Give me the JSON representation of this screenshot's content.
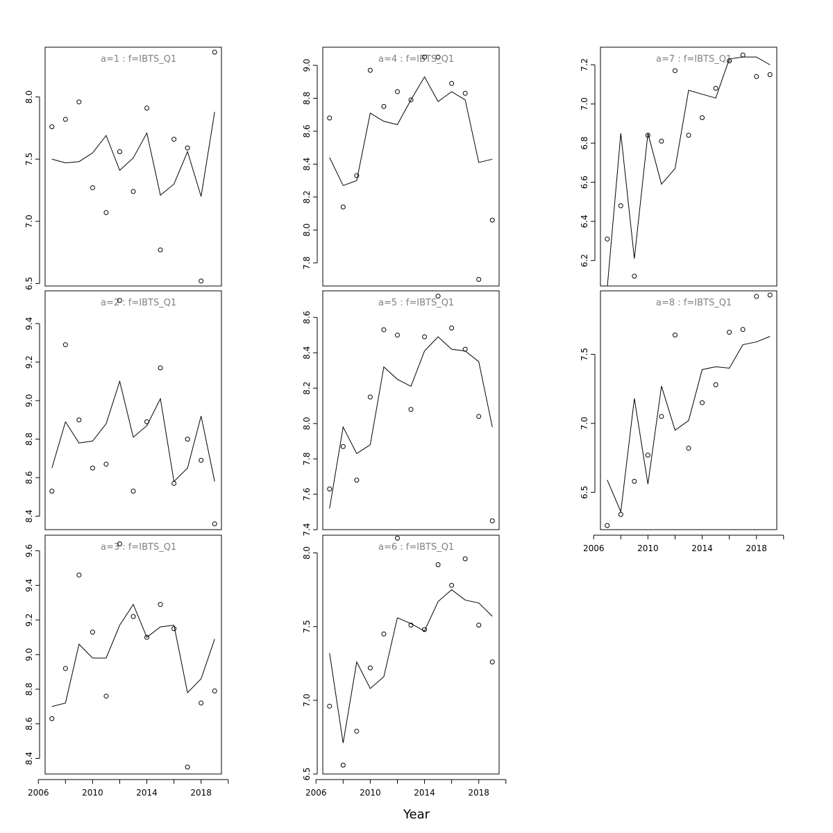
{
  "figure": {
    "xlabel": "Year"
  },
  "chart_data": [
    {
      "type": "line",
      "title": "a=1  :  f=IBTS_Q1",
      "x": [
        2007,
        2008,
        2009,
        2010,
        2011,
        2012,
        2013,
        2014,
        2015,
        2016,
        2017,
        2018,
        2019
      ],
      "series": [
        {
          "kind": "points",
          "values": [
            7.76,
            7.82,
            7.96,
            7.27,
            7.07,
            7.56,
            7.24,
            7.91,
            6.77,
            7.66,
            7.59,
            6.52,
            8.36
          ]
        },
        {
          "kind": "line",
          "values": [
            7.5,
            7.47,
            7.48,
            7.55,
            7.69,
            7.41,
            7.51,
            7.71,
            7.21,
            7.3,
            7.56,
            7.2,
            7.88
          ]
        }
      ],
      "ylim": [
        6.48,
        8.4
      ],
      "yticks": [
        6.5,
        7.0,
        7.5,
        8.0
      ],
      "ytick_labels": [
        "6.5",
        "7.0",
        "7.5",
        "8.0"
      ]
    },
    {
      "type": "line",
      "title": "a=2  :  f=IBTS_Q1",
      "x": [
        2007,
        2008,
        2009,
        2010,
        2011,
        2012,
        2013,
        2014,
        2015,
        2016,
        2017,
        2018,
        2019
      ],
      "series": [
        {
          "kind": "points",
          "values": [
            8.53,
            9.29,
            8.9,
            8.65,
            8.67,
            9.52,
            8.53,
            8.89,
            9.17,
            8.57,
            8.8,
            8.69,
            8.36
          ]
        },
        {
          "kind": "line",
          "values": [
            8.65,
            8.89,
            8.78,
            8.79,
            8.88,
            9.1,
            8.81,
            8.87,
            9.01,
            8.58,
            8.65,
            8.92,
            8.58
          ]
        }
      ],
      "ylim": [
        8.33,
        9.57
      ],
      "yticks": [
        8.4,
        8.6,
        8.8,
        9.0,
        9.2,
        9.4
      ],
      "ytick_labels": [
        "8.4",
        "8.6",
        "8.8",
        "9.0",
        "9.2",
        "9.4"
      ]
    },
    {
      "type": "line",
      "title": "a=3  :  f=IBTS_Q1",
      "x": [
        2007,
        2008,
        2009,
        2010,
        2011,
        2012,
        2013,
        2014,
        2015,
        2016,
        2017,
        2018,
        2019
      ],
      "series": [
        {
          "kind": "points",
          "values": [
            8.63,
            8.92,
            9.46,
            9.13,
            8.76,
            9.64,
            9.22,
            9.1,
            9.29,
            9.15,
            8.35,
            8.72,
            8.79
          ]
        },
        {
          "kind": "line",
          "values": [
            8.7,
            8.72,
            9.06,
            8.98,
            8.98,
            9.17,
            9.29,
            9.1,
            9.16,
            9.17,
            8.78,
            8.86,
            9.09
          ]
        }
      ],
      "ylim": [
        8.31,
        9.69
      ],
      "yticks": [
        8.4,
        8.6,
        8.8,
        9.0,
        9.2,
        9.4,
        9.6
      ],
      "ytick_labels": [
        "8.4",
        "8.6",
        "8.8",
        "9.0",
        "9.2",
        "9.4",
        "9.6"
      ]
    },
    {
      "type": "line",
      "title": "a=4  :  f=IBTS_Q1",
      "x": [
        2007,
        2008,
        2009,
        2010,
        2011,
        2012,
        2013,
        2014,
        2015,
        2016,
        2017,
        2018,
        2019
      ],
      "series": [
        {
          "kind": "points",
          "values": [
            8.68,
            8.14,
            8.33,
            8.97,
            8.75,
            8.84,
            8.79,
            9.05,
            9.05,
            8.89,
            8.83,
            7.7,
            8.06
          ]
        },
        {
          "kind": "line",
          "values": [
            8.44,
            8.27,
            8.3,
            8.71,
            8.66,
            8.64,
            8.79,
            8.93,
            8.78,
            8.84,
            8.79,
            8.41,
            8.43
          ]
        }
      ],
      "ylim": [
        7.66,
        9.11
      ],
      "yticks": [
        7.8,
        8.0,
        8.2,
        8.4,
        8.6,
        8.8,
        9.0
      ],
      "ytick_labels": [
        "7.8",
        "8.0",
        "8.2",
        "8.4",
        "8.6",
        "8.8",
        "9.0"
      ]
    },
    {
      "type": "line",
      "title": "a=5  :  f=IBTS_Q1",
      "x": [
        2007,
        2008,
        2009,
        2010,
        2011,
        2012,
        2013,
        2014,
        2015,
        2016,
        2017,
        2018,
        2019
      ],
      "series": [
        {
          "kind": "points",
          "values": [
            7.63,
            7.87,
            7.68,
            8.15,
            8.53,
            8.5,
            8.08,
            8.49,
            8.72,
            8.54,
            8.42,
            8.04,
            7.45
          ]
        },
        {
          "kind": "line",
          "values": [
            7.52,
            7.98,
            7.83,
            7.88,
            8.32,
            8.25,
            8.21,
            8.41,
            8.49,
            8.42,
            8.41,
            8.35,
            7.98
          ]
        }
      ],
      "ylim": [
        7.4,
        8.75
      ],
      "yticks": [
        7.4,
        7.6,
        7.8,
        8.0,
        8.2,
        8.4,
        8.6
      ],
      "ytick_labels": [
        "7.4",
        "7.6",
        "7.8",
        "8.0",
        "8.2",
        "8.4",
        "8.6"
      ]
    },
    {
      "type": "line",
      "title": "a=6  :  f=IBTS_Q1",
      "x": [
        2007,
        2008,
        2009,
        2010,
        2011,
        2012,
        2013,
        2014,
        2015,
        2016,
        2017,
        2018,
        2019
      ],
      "series": [
        {
          "kind": "points",
          "values": [
            6.96,
            6.56,
            6.79,
            7.22,
            7.45,
            8.1,
            7.51,
            7.48,
            7.92,
            7.78,
            7.96,
            7.51,
            7.26
          ]
        },
        {
          "kind": "line",
          "values": [
            7.32,
            6.71,
            7.26,
            7.08,
            7.16,
            7.56,
            7.52,
            7.47,
            7.67,
            7.75,
            7.68,
            7.66,
            7.57
          ]
        }
      ],
      "ylim": [
        6.5,
        8.12
      ],
      "yticks": [
        6.5,
        7.0,
        7.5,
        8.0
      ],
      "ytick_labels": [
        "6.5",
        "7.0",
        "7.5",
        "8.0"
      ]
    },
    {
      "type": "line",
      "title": "a=7  :  f=IBTS_Q1",
      "x": [
        2007,
        2008,
        2009,
        2010,
        2011,
        2012,
        2013,
        2014,
        2015,
        2016,
        2017,
        2018,
        2019
      ],
      "series": [
        {
          "kind": "points",
          "values": [
            6.31,
            6.48,
            6.12,
            6.84,
            6.81,
            7.17,
            6.84,
            6.93,
            7.08,
            7.22,
            7.25,
            7.14,
            7.15
          ]
        },
        {
          "kind": "line",
          "values": [
            6.06,
            6.85,
            6.21,
            6.85,
            6.59,
            6.67,
            7.07,
            7.05,
            7.03,
            7.23,
            7.24,
            7.24,
            7.2
          ]
        }
      ],
      "ylim": [
        6.07,
        7.29
      ],
      "yticks": [
        6.2,
        6.4,
        6.6,
        6.8,
        7.0,
        7.2
      ],
      "ytick_labels": [
        "6.2",
        "6.4",
        "6.6",
        "6.8",
        "7.0",
        "7.2"
      ]
    },
    {
      "type": "line",
      "title": "a=8  :  f=IBTS_Q1",
      "x": [
        2007,
        2008,
        2009,
        2010,
        2011,
        2012,
        2013,
        2014,
        2015,
        2016,
        2017,
        2018,
        2019
      ],
      "series": [
        {
          "kind": "points",
          "values": [
            6.26,
            6.34,
            6.58,
            6.77,
            7.05,
            7.64,
            6.82,
            7.15,
            7.28,
            7.66,
            7.68,
            7.92,
            7.93
          ]
        },
        {
          "kind": "line",
          "values": [
            6.59,
            6.36,
            7.18,
            6.56,
            7.27,
            6.95,
            7.02,
            7.39,
            7.41,
            7.4,
            7.57,
            7.59,
            7.63
          ]
        }
      ],
      "ylim": [
        6.23,
        7.96
      ],
      "yticks": [
        6.5,
        7.0,
        7.5
      ],
      "ytick_labels": [
        "6.5",
        "7.0",
        "7.5"
      ]
    }
  ],
  "xticks": [
    2006,
    2010,
    2014,
    2018
  ],
  "xtick_labels": [
    "2006",
    "2010",
    "2014",
    "2018"
  ],
  "xlim": [
    2006.5,
    2019.5
  ]
}
